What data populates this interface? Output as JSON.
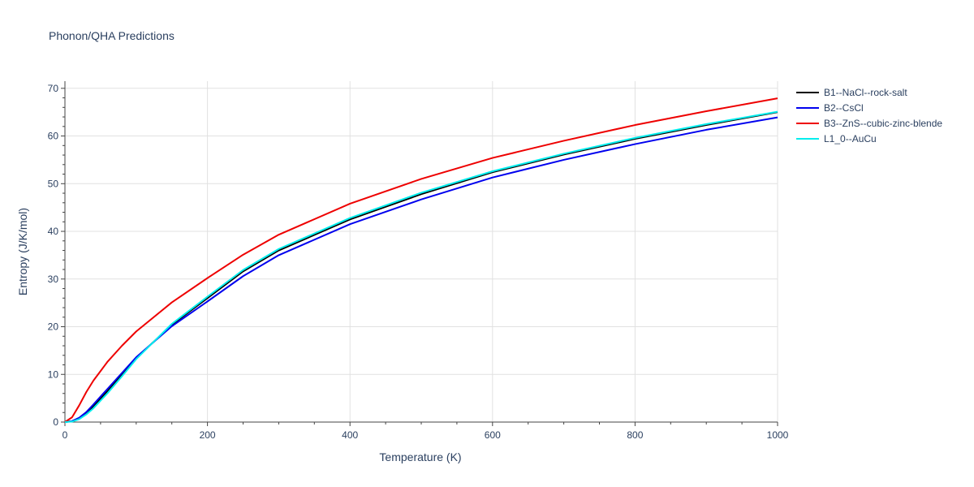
{
  "chart_data": {
    "type": "line",
    "title": "Phonon/QHA Predictions",
    "xlabel": "Temperature (K)",
    "ylabel": "Entropy (J/K/mol)",
    "xlim": [
      0,
      1000
    ],
    "ylim": [
      0,
      71.5
    ],
    "xticks": [
      0,
      200,
      400,
      600,
      800,
      1000
    ],
    "yticks": [
      0,
      10,
      20,
      30,
      40,
      50,
      60,
      70
    ],
    "grid": true,
    "legend_position": "top-right",
    "series": [
      {
        "name": "B1--NaCl--rock-salt",
        "color": "#000000",
        "x": [
          0,
          10,
          20,
          30,
          40,
          60,
          80,
          100,
          150,
          200,
          250,
          300,
          400,
          500,
          600,
          700,
          800,
          900,
          1000
        ],
        "y": [
          0,
          0.2,
          0.8,
          1.9,
          3.3,
          6.5,
          9.9,
          13.4,
          20.4,
          26.0,
          31.6,
          36.0,
          42.5,
          47.8,
          52.4,
          56.1,
          59.4,
          62.3,
          65.0
        ]
      },
      {
        "name": "B2--CsCl",
        "color": "#0000ee",
        "x": [
          0,
          10,
          20,
          30,
          40,
          60,
          80,
          100,
          150,
          200,
          250,
          300,
          400,
          500,
          600,
          700,
          800,
          900,
          1000
        ],
        "y": [
          0,
          0.2,
          0.9,
          2.1,
          3.7,
          7.0,
          10.3,
          13.6,
          20.1,
          25.3,
          30.6,
          35.0,
          41.5,
          46.7,
          51.3,
          55.0,
          58.3,
          61.3,
          63.9
        ]
      },
      {
        "name": "B3--ZnS--cubic-zinc-blende",
        "color": "#ee0000",
        "x": [
          0,
          10,
          20,
          30,
          40,
          60,
          80,
          100,
          150,
          200,
          250,
          300,
          400,
          500,
          600,
          700,
          800,
          900,
          1000
        ],
        "y": [
          0,
          1.0,
          3.5,
          6.3,
          8.7,
          12.7,
          16.0,
          19.0,
          25.1,
          30.2,
          35.1,
          39.3,
          45.8,
          51.0,
          55.4,
          59.0,
          62.3,
          65.2,
          67.9
        ]
      },
      {
        "name": "L1_0--AuCu",
        "color": "#00eeee",
        "x": [
          0,
          10,
          20,
          30,
          40,
          60,
          80,
          100,
          150,
          200,
          250,
          300,
          400,
          500,
          600,
          700,
          800,
          900,
          1000
        ],
        "y": [
          0,
          0.1,
          0.6,
          1.6,
          2.9,
          6.1,
          9.6,
          13.2,
          20.6,
          26.3,
          31.9,
          36.3,
          42.8,
          48.1,
          52.6,
          56.3,
          59.6,
          62.5,
          65.1
        ]
      }
    ]
  }
}
